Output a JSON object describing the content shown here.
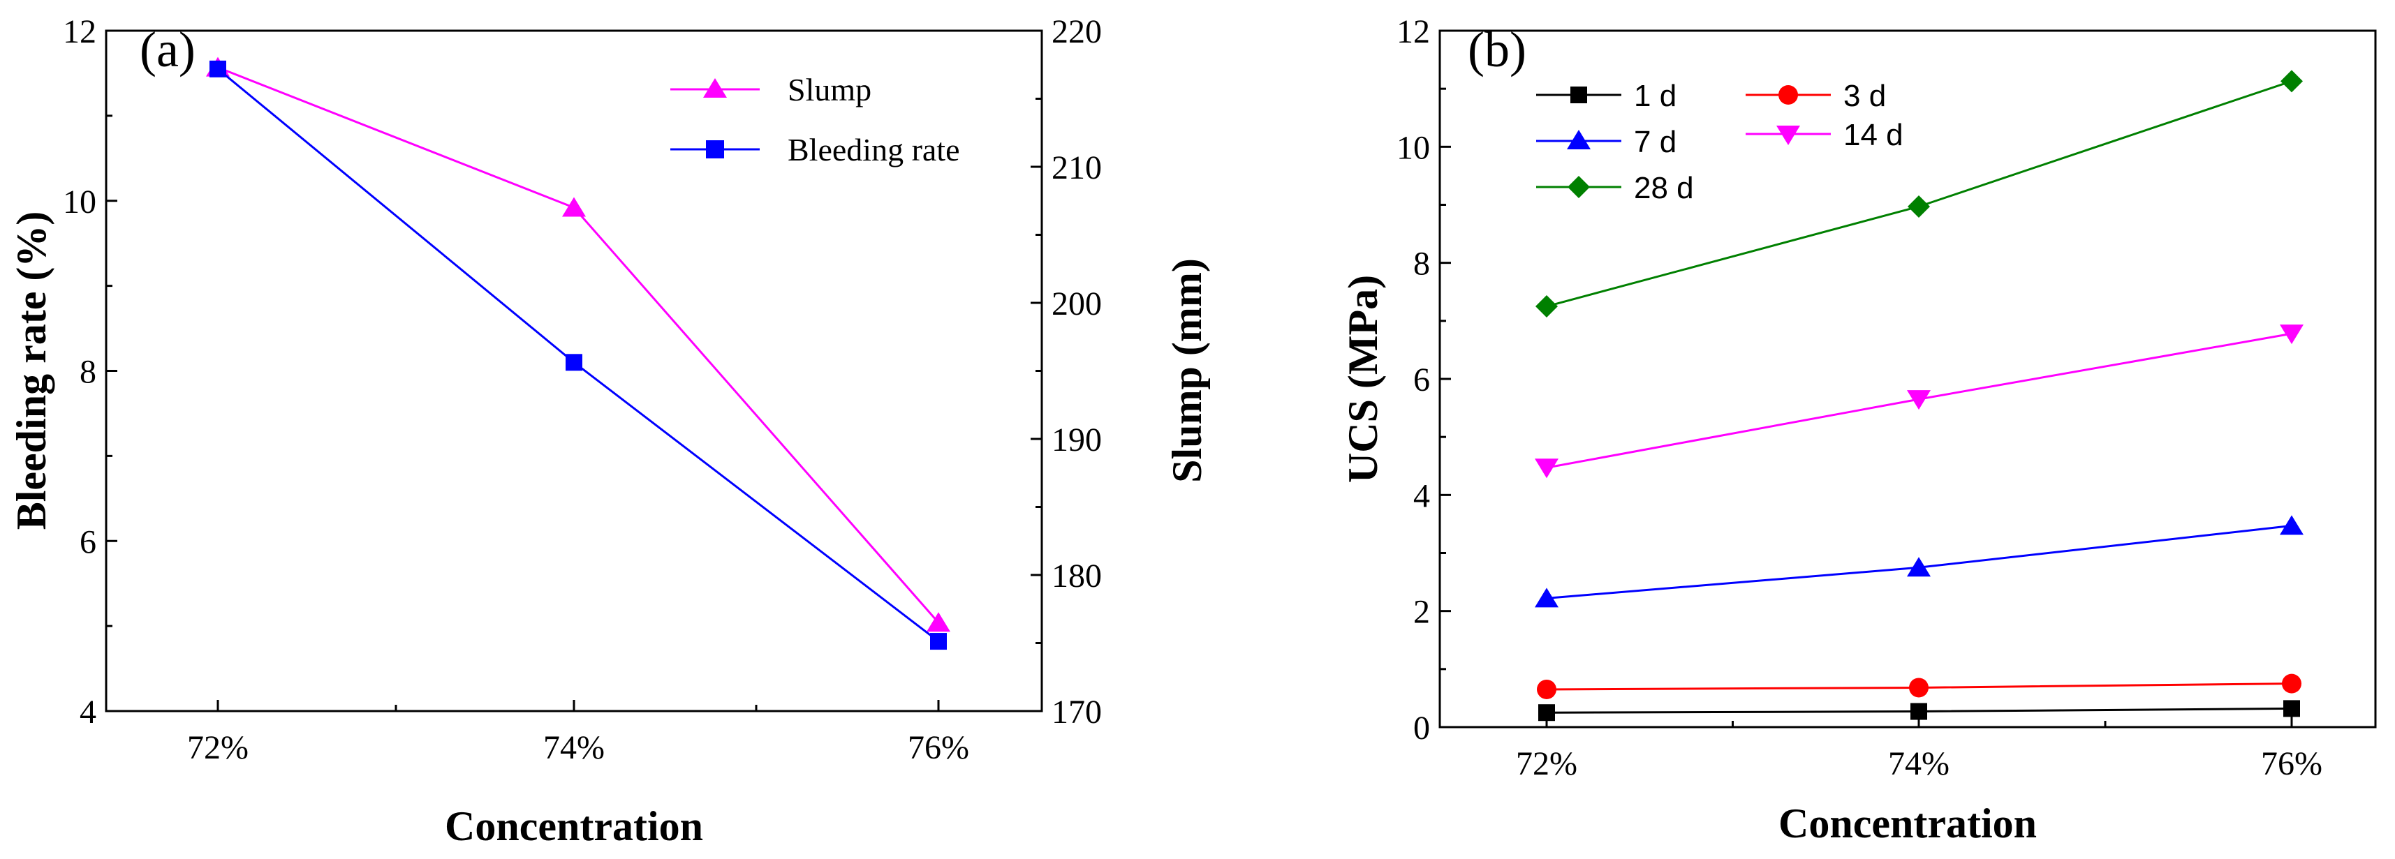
{
  "chart_data": [
    {
      "panel_label": "(a)",
      "type": "line",
      "xlabel": "Concentration",
      "categories": [
        "72%",
        "74%",
        "76%"
      ],
      "left_axis": {
        "label": "Bleeding rate (%)",
        "ylim": [
          4,
          12
        ],
        "ticks": [
          "4",
          "6",
          "8",
          "10",
          "12"
        ]
      },
      "right_axis": {
        "label": "Slump (mm)",
        "ylim": [
          170,
          220
        ],
        "ticks": [
          "170",
          "180",
          "190",
          "200",
          "210",
          "220"
        ]
      },
      "series": [
        {
          "name": "Slump",
          "axis": "right",
          "values": [
            217.3,
            207.0,
            176.5
          ],
          "color": "#ff00ff",
          "marker": "triangle-up"
        },
        {
          "name": "Bleeding rate",
          "axis": "left",
          "values": [
            11.55,
            8.1,
            4.82
          ],
          "color": "#0000ff",
          "marker": "square"
        }
      ],
      "legend_position": "top-right"
    },
    {
      "panel_label": "(b)",
      "type": "line",
      "xlabel": "Concentration",
      "categories": [
        "72%",
        "74%",
        "76%"
      ],
      "ylabel": "UCS (MPa)",
      "ylim": [
        0,
        12
      ],
      "ticks": [
        "0",
        "2",
        "4",
        "6",
        "8",
        "10",
        "12"
      ],
      "series": [
        {
          "name": "1 d",
          "values": [
            0.25,
            0.27,
            0.32
          ],
          "color": "#000000",
          "marker": "square"
        },
        {
          "name": "3 d",
          "values": [
            0.65,
            0.68,
            0.75
          ],
          "color": "#ff0000",
          "marker": "circle"
        },
        {
          "name": "7 d",
          "values": [
            2.22,
            2.75,
            3.47
          ],
          "color": "#0000ff",
          "marker": "triangle-up"
        },
        {
          "name": "14 d",
          "values": [
            4.47,
            5.65,
            6.78
          ],
          "color": "#ff00ff",
          "marker": "triangle-down"
        },
        {
          "name": "28 d",
          "values": [
            7.25,
            8.97,
            11.13
          ],
          "color": "#008000",
          "marker": "diamond"
        }
      ],
      "legend_position": "top-left"
    }
  ]
}
